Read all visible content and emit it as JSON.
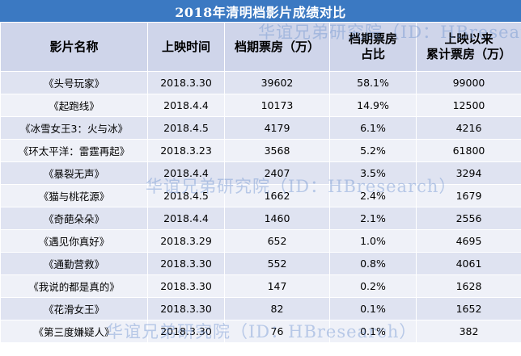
{
  "title": "2018年清明档影片成绩对比",
  "header": {
    "col1": "影片名称",
    "col2": "上映时间",
    "col3": "档期票房（万）",
    "col4_line1": "档期票房",
    "col4_line2": "占比",
    "col5_line1": "上映以来",
    "col5_line2": "累计票房（万）"
  },
  "rows": [
    {
      "name": "《头号玩家》",
      "date": "2018.3.30",
      "box": "39602",
      "share": "58.1%",
      "total": "99000"
    },
    {
      "name": "《起跑线》",
      "date": "2018.4.4",
      "box": "10173",
      "share": "14.9%",
      "total": "12500"
    },
    {
      "name": "《冰雪女王3：火与冰》",
      "date": "2018.4.5",
      "box": "4179",
      "share": "6.1%",
      "total": "4216"
    },
    {
      "name": "《环太平洋：雷霆再起》",
      "date": "2018.3.23",
      "box": "3568",
      "share": "5.2%",
      "total": "61800"
    },
    {
      "name": "《暴裂无声》",
      "date": "2018.4.4",
      "box": "2407",
      "share": "3.5%",
      "total": "3294"
    },
    {
      "name": "《猫与桃花源》",
      "date": "2018.4.5",
      "box": "1662",
      "share": "2.4%",
      "total": "1679"
    },
    {
      "name": "《奇葩朵朵》",
      "date": "2018.4.4",
      "box": "1460",
      "share": "2.1%",
      "total": "2556"
    },
    {
      "name": "《遇见你真好》",
      "date": "2018.3.29",
      "box": "652",
      "share": "1.0%",
      "total": "4695"
    },
    {
      "name": "《通勤营救》",
      "date": "2018.3.30",
      "box": "552",
      "share": "0.8%",
      "total": "4061"
    },
    {
      "name": "《我说的都是真的》",
      "date": "2018.3.30",
      "box": "147",
      "share": "0.2%",
      "total": "1628"
    },
    {
      "name": "《花滑女王》",
      "date": "2018.3.30",
      "box": "82",
      "share": "0.1%",
      "total": "1652"
    },
    {
      "name": "《第三度嫌疑人》",
      "date": "2018.3.30",
      "box": "76",
      "share": "0.1%",
      "total": "382"
    }
  ],
  "watermark": "华谊兄弟研究院（ID：HBresearch）",
  "colors": {
    "title_bg": "#3b79c2",
    "header_bg": "#cfd5ea",
    "row_odd": "#dfe3f1",
    "row_even": "#eff1f8",
    "watermark": "#638ccd"
  }
}
